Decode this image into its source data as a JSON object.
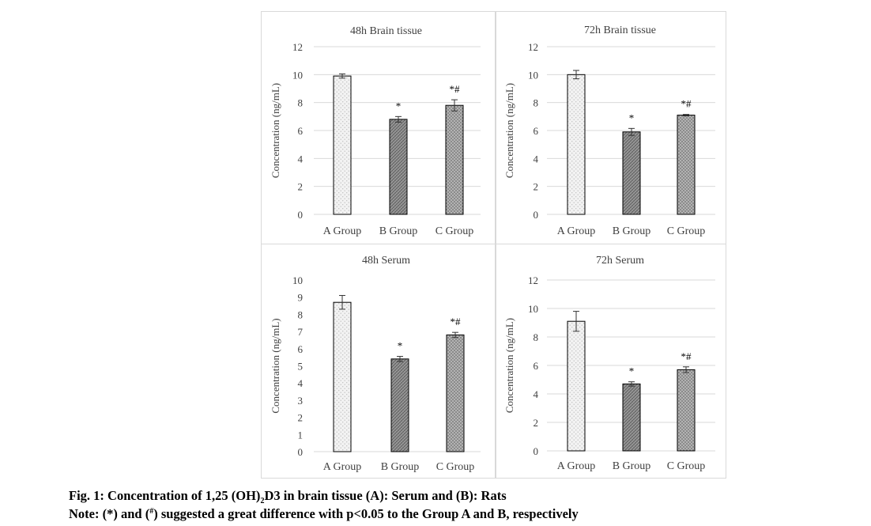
{
  "figure": {
    "caption_line1": {
      "pre": "Fig. 1: Concentration of 1,25 (OH)",
      "sub": "2",
      "post": "D3 in brain tissue (A): Serum and (B): Rats"
    },
    "caption_line2": {
      "pre": "Note: (*) and (",
      "sup": "#",
      "post": ") suggested a great difference with p<0.05 to the Group A and B, respectively"
    }
  },
  "colors": {
    "border": "#d9d9d9",
    "gridline": "#d9d9d9",
    "bar_outline": "#000000",
    "text": "#404040",
    "bar_a_fill": "#e6e6e6",
    "bar_b_fill": "#8c8c8c",
    "bar_c_fill": "#a6a6a6"
  },
  "chart_data": [
    {
      "type": "bar",
      "title": "48h Brain tissue",
      "ylabel": "Concentration (ng/mL)",
      "categories": [
        "A Group",
        "B Group",
        "C Group"
      ],
      "values": [
        9.9,
        6.8,
        7.8
      ],
      "errors": [
        0.15,
        0.2,
        0.4
      ],
      "annotations": [
        "",
        "*",
        "*#"
      ],
      "ylim": [
        0,
        12
      ],
      "yticks": [
        "0",
        "2",
        "4",
        "6",
        "8",
        "10",
        "12"
      ],
      "grid": true
    },
    {
      "type": "bar",
      "title": "72h Brain tissue",
      "ylabel": "Concentration (ng/mL)",
      "categories": [
        "A Group",
        "B Group",
        "C Group"
      ],
      "values": [
        10.0,
        5.9,
        7.1
      ],
      "errors": [
        0.3,
        0.25,
        0.05
      ],
      "annotations": [
        "",
        "*",
        "*#"
      ],
      "ylim": [
        0,
        12
      ],
      "yticks": [
        "0",
        "2",
        "4",
        "6",
        "8",
        "10",
        "12"
      ],
      "grid": true
    },
    {
      "type": "bar",
      "title": "48h Serum",
      "ylabel": "Concentration (ng/mL)",
      "categories": [
        "A Group",
        "B Group",
        "C Group"
      ],
      "values": [
        8.7,
        5.4,
        6.8
      ],
      "errors": [
        0.4,
        0.15,
        0.15
      ],
      "annotations": [
        "",
        "*",
        "*#"
      ],
      "ylim": [
        0,
        10
      ],
      "yticks": [
        "0",
        "1",
        "2",
        "3",
        "4",
        "5",
        "6",
        "7",
        "8",
        "9",
        "10"
      ],
      "grid": false
    },
    {
      "type": "bar",
      "title": "72h Serum",
      "ylabel": "Concentration (ng/mL)",
      "categories": [
        "A Group",
        "B Group",
        "C Group"
      ],
      "values": [
        9.1,
        4.7,
        5.7
      ],
      "errors": [
        0.7,
        0.15,
        0.2
      ],
      "annotations": [
        "",
        "*",
        "*#"
      ],
      "ylim": [
        0,
        12
      ],
      "yticks": [
        "0",
        "2",
        "4",
        "6",
        "8",
        "10",
        "12"
      ],
      "grid": true
    }
  ]
}
